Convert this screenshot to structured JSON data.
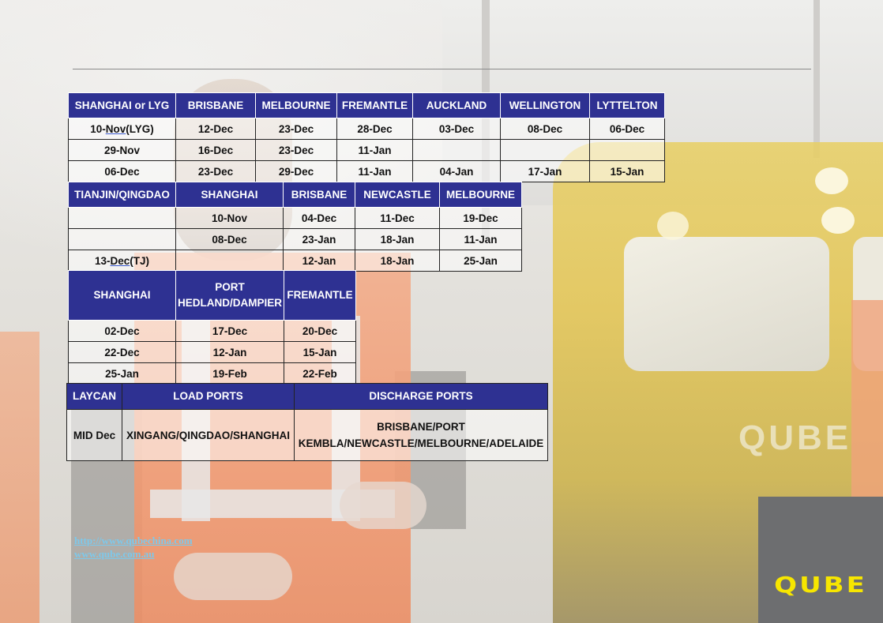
{
  "shipping_schedule_1": {
    "headers": [
      "SHANGHAI or LYG",
      "BRISBANE",
      "MELBOURNE",
      "FREMANTLE",
      "AUCKLAND",
      "WELLINGTON",
      "LYTTELTON"
    ],
    "rows": [
      {
        "c0_pre": "10-",
        "c0_ul": "Nov",
        "c0_post": "(LYG)",
        "c1": "12-Dec",
        "c2": "23-Dec",
        "c3": "28-Dec",
        "c4": "03-Dec",
        "c5": "08-Dec",
        "c6": "06-Dec"
      },
      {
        "c0": "29-Nov",
        "c1": "16-Dec",
        "c2": "23-Dec",
        "c3": "11-Jan",
        "c4": "",
        "c5": "",
        "c6": ""
      },
      {
        "c0": "06-Dec",
        "c1": "23-Dec",
        "c2": "29-Dec",
        "c3": "11-Jan",
        "c4": "04-Jan",
        "c5": "17-Jan",
        "c6": "15-Jan"
      }
    ]
  },
  "shipping_schedule_2": {
    "headers": [
      "TIANJIN/QINGDAO",
      "SHANGHAI",
      "BRISBANE",
      "NEWCASTLE",
      "MELBOURNE"
    ],
    "rows": [
      {
        "c0": "",
        "c1": "10-Nov",
        "c2": "04-Dec",
        "c3": "11-Dec",
        "c4": "19-Dec"
      },
      {
        "c0": "",
        "c1": "08-Dec",
        "c2": "23-Jan",
        "c3": "18-Jan",
        "c4": "11-Jan"
      },
      {
        "c0_pre": "13-",
        "c0_ul": "Dec",
        "c0_post": "(TJ)",
        "c1": "",
        "c2": "12-Jan",
        "c3": "18-Jan",
        "c4": "25-Jan"
      }
    ]
  },
  "shipping_schedule_3": {
    "headers": [
      "SHANGHAI",
      "PORT HEDLAND/DAMPIER",
      "FREMANTLE"
    ],
    "rows": [
      {
        "c0": "02-Dec",
        "c1": "17-Dec",
        "c2": "20-Dec"
      },
      {
        "c0": "22-Dec",
        "c1": "12-Jan",
        "c2": "15-Jan"
      },
      {
        "c0": "25-Jan",
        "c1": "19-Feb",
        "c2": "22-Feb"
      }
    ]
  },
  "shipping_schedule_4": {
    "headers": [
      "LAYCAN",
      "LOAD PORTS",
      "DISCHARGE PORTS"
    ],
    "row": {
      "laycan": "MID Dec",
      "load": "XINGANG/QINGDAO/SHANGHAI",
      "discharge": "BRISBANE/PORT KEMBLA/NEWCASTLE/MELBOURNE/ADELAIDE"
    }
  },
  "links": {
    "china": "http://www.qubechina.com",
    "au": "www.qube.com.au"
  },
  "logo": {
    "text": "QUBE",
    "color": "#f7e600",
    "box_color": "#6d6e70"
  },
  "colors": {
    "header_bg": "#2e3192",
    "header_text": "#ffffff",
    "link": "#7ec8ea"
  }
}
